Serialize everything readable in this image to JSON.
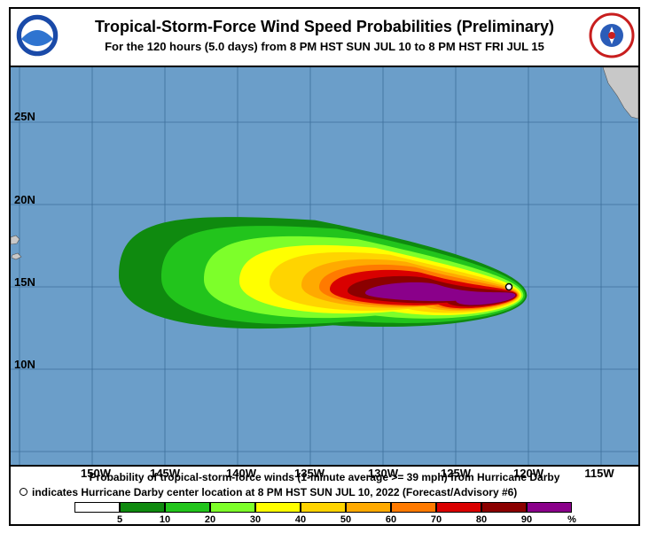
{
  "header": {
    "title": "Tropical-Storm-Force Wind Speed Probabilities (Preliminary)",
    "subtitle": "For the 120 hours (5.0 days) from 8 PM HST SUN JUL 10 to 8 PM HST FRI JUL 15"
  },
  "map": {
    "ocean_color": "#6b9ec9",
    "land_color": "#c8c8c8",
    "storm_name": "Hurricane Darby",
    "center": {
      "lon": -121.2,
      "lat": 14.5
    },
    "lat_labels": [
      "25N",
      "20N",
      "15N",
      "10N"
    ],
    "lon_labels": [
      "150W",
      "145W",
      "140W",
      "135W",
      "130W",
      "125W",
      "120W",
      "115W"
    ],
    "probability_bands": [
      {
        "min": 5,
        "color": "#0f8a0f"
      },
      {
        "min": 10,
        "color": "#22c41c"
      },
      {
        "min": 20,
        "color": "#7dff2a"
      },
      {
        "min": 30,
        "color": "#ffff00"
      },
      {
        "min": 40,
        "color": "#ffd400"
      },
      {
        "min": 50,
        "color": "#ffaa00"
      },
      {
        "min": 60,
        "color": "#ff7a00"
      },
      {
        "min": 70,
        "color": "#d90000"
      },
      {
        "min": 80,
        "color": "#8b0000"
      },
      {
        "min": 90,
        "color": "#8a008a"
      }
    ]
  },
  "footer": {
    "caption1": "Probability of tropical-storm-force winds (1-minute average >= 39 mph) from Hurricane Darby",
    "caption2": "indicates Hurricane Darby center location at 8 PM HST SUN JUL 10, 2022 (Forecast/Advisory #6)",
    "legend": {
      "colors": [
        "#ffffff",
        "#0f8a0f",
        "#22c41c",
        "#7dff2a",
        "#ffff00",
        "#ffd400",
        "#ffaa00",
        "#ff7a00",
        "#d90000",
        "#8b0000",
        "#8a008a"
      ],
      "ticks": [
        "5",
        "10",
        "20",
        "30",
        "40",
        "50",
        "60",
        "70",
        "80",
        "90"
      ],
      "unit": "%"
    }
  }
}
